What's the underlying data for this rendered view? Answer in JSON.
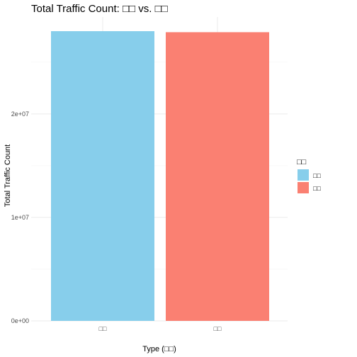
{
  "chart_data": {
    "type": "bar",
    "title": "Total Traffic Count: □□ vs. □□",
    "xlabel": "Type (□□)",
    "ylabel": "Total Traffic Count",
    "categories": [
      "□□",
      "□□"
    ],
    "values": [
      28000000,
      27900000
    ],
    "colors": [
      "#87CEEB",
      "#FA8072"
    ],
    "ylim": [
      0,
      28000000
    ],
    "yticks": [
      0,
      10000000,
      20000000
    ],
    "ytick_labels": [
      "0e+00",
      "1e+07",
      "2e+07"
    ],
    "grid": true,
    "legend": {
      "title": "□□",
      "position": "right",
      "entries": [
        {
          "label": "□□",
          "color": "#87CEEB"
        },
        {
          "label": "□□",
          "color": "#FA8072"
        }
      ]
    }
  }
}
